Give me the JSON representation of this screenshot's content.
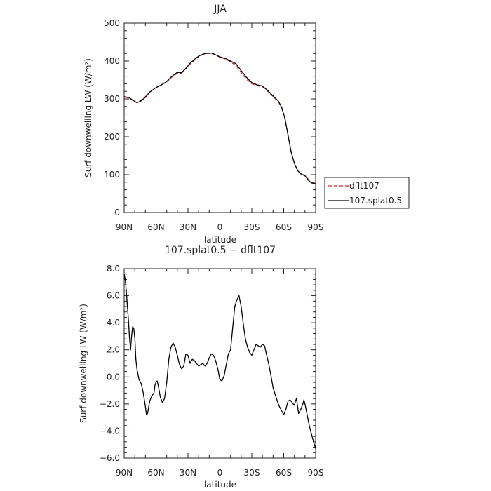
{
  "chart_data": [
    {
      "type": "line",
      "title": "JJA",
      "xlabel": "latitude",
      "ylabel": "Surf downwelling LW (W/m²)",
      "xlim": [
        90,
        -90
      ],
      "ylim": [
        0,
        500
      ],
      "x_ticks": [
        90,
        60,
        30,
        0,
        -30,
        -60,
        -90
      ],
      "x_tick_labels": [
        "90N",
        "60N",
        "30N",
        "0",
        "30S",
        "60S",
        "90S"
      ],
      "y_ticks": [
        0,
        100,
        200,
        300,
        400,
        500
      ],
      "y_tick_labels": [
        "0",
        "100",
        "200",
        "300",
        "400",
        "500"
      ],
      "legend": {
        "placement": "right-bottom-outside"
      },
      "series": [
        {
          "name": "dflt107",
          "color": "#d62728",
          "dash": "dashed",
          "x": [
            90,
            85,
            82,
            78,
            75,
            70,
            66,
            60,
            55,
            50,
            45,
            40,
            36,
            32,
            28,
            24,
            20,
            15,
            12,
            8,
            5,
            0,
            -5,
            -10,
            -15,
            -20,
            -25,
            -30,
            -35,
            -40,
            -45,
            -50,
            -55,
            -58,
            -61,
            -64,
            -67,
            -70,
            -73,
            -76,
            -80,
            -83,
            -86,
            -90
          ],
          "y": [
            305,
            302,
            295,
            290,
            295,
            306,
            318,
            330,
            337,
            345,
            358,
            368,
            368,
            380,
            392,
            402,
            412,
            418,
            420,
            420,
            417,
            410,
            406,
            398,
            388,
            370,
            352,
            340,
            335,
            332,
            320,
            306,
            293,
            278,
            250,
            205,
            160,
            130,
            112,
            103,
            98,
            88,
            80,
            78
          ]
        },
        {
          "name": "107.splat0.5",
          "color": "#000000",
          "dash": "solid",
          "x": [
            90,
            85,
            82,
            78,
            75,
            70,
            66,
            60,
            55,
            50,
            45,
            40,
            36,
            32,
            28,
            24,
            20,
            15,
            12,
            8,
            5,
            0,
            -5,
            -10,
            -15,
            -20,
            -25,
            -30,
            -35,
            -40,
            -45,
            -50,
            -55,
            -58,
            -61,
            -64,
            -67,
            -70,
            -73,
            -76,
            -80,
            -83,
            -86,
            -90
          ],
          "y": [
            306,
            303,
            297,
            290,
            293,
            304,
            318,
            330,
            337,
            346,
            360,
            370,
            369,
            381,
            394,
            404,
            413,
            419,
            421,
            421,
            418,
            411,
            407,
            400,
            393,
            375,
            357,
            343,
            337,
            334,
            322,
            308,
            294,
            278,
            250,
            205,
            160,
            130,
            111,
            102,
            97,
            86,
            78,
            76
          ]
        }
      ]
    },
    {
      "type": "line",
      "title": "107.splat0.5 − dflt107",
      "xlabel": "latitude",
      "ylabel": "Surf downwelling LW (W/m²)",
      "xlim": [
        90,
        -90
      ],
      "ylim": [
        -6.0,
        8.0
      ],
      "x_ticks": [
        90,
        60,
        30,
        0,
        -30,
        -60,
        -90
      ],
      "x_tick_labels": [
        "90N",
        "60N",
        "30N",
        "0",
        "30S",
        "60S",
        "90S"
      ],
      "y_ticks": [
        -6,
        -4,
        -2,
        0,
        2,
        4,
        6,
        8
      ],
      "y_tick_labels": [
        "−6.0",
        "−4.0",
        "−2.0",
        "0.0",
        "2.0",
        "4.0",
        "6.0",
        "8.0"
      ],
      "series": [
        {
          "color": "#000000",
          "dash": "solid",
          "x": [
            90,
            89,
            88,
            86,
            85,
            84,
            83,
            82,
            81,
            80,
            79,
            78,
            76,
            74,
            72,
            70,
            69,
            68,
            66,
            64,
            62,
            61,
            60,
            59,
            58,
            56,
            54,
            52,
            50,
            48,
            46,
            44,
            42,
            40,
            38,
            36,
            34,
            33,
            32,
            30,
            28,
            26,
            24,
            22,
            20,
            18,
            16,
            14,
            12,
            10,
            8,
            6,
            4,
            2,
            0,
            -2,
            -4,
            -6,
            -8,
            -10,
            -12,
            -14,
            -16,
            -18,
            -20,
            -22,
            -24,
            -25,
            -26,
            -28,
            -30,
            -32,
            -34,
            -36,
            -38,
            -40,
            -42,
            -44,
            -46,
            -48,
            -50,
            -52,
            -54,
            -56,
            -58,
            -60,
            -62,
            -64,
            -66,
            -68,
            -69,
            -70,
            -71,
            -72,
            -74,
            -76,
            -78,
            -79,
            -80,
            -82,
            -84,
            -86,
            -88,
            -90
          ],
          "y": [
            7.6,
            7.2,
            6.4,
            4.2,
            2.9,
            2.0,
            3.0,
            3.7,
            3.6,
            2.9,
            1.3,
            0.6,
            -0.2,
            -0.5,
            -1.2,
            -2.2,
            -2.8,
            -2.7,
            -1.8,
            -1.4,
            -1.2,
            -0.6,
            -0.4,
            -0.3,
            -0.6,
            -1.5,
            -1.9,
            -1.6,
            -0.4,
            1.3,
            2.2,
            2.5,
            2.2,
            1.6,
            0.9,
            0.6,
            0.8,
            1.2,
            1.7,
            1.6,
            1.0,
            1.3,
            1.2,
            1.0,
            0.8,
            0.9,
            1.0,
            0.8,
            1.0,
            1.4,
            1.7,
            1.6,
            1.2,
            0.6,
            -0.2,
            -0.3,
            0.1,
            0.9,
            1.7,
            2.0,
            3.6,
            5.2,
            5.7,
            6.0,
            5.2,
            3.9,
            2.8,
            2.5,
            2.2,
            1.8,
            1.6,
            2.0,
            2.4,
            2.3,
            2.2,
            2.4,
            2.3,
            1.6,
            0.9,
            0.1,
            -0.8,
            -1.3,
            -1.8,
            -2.2,
            -2.5,
            -2.8,
            -2.4,
            -1.8,
            -1.7,
            -1.9,
            -2.0,
            -2.1,
            -1.8,
            -1.6,
            -2.7,
            -2.4,
            -2.0,
            -1.7,
            -2.0,
            -2.8,
            -3.6,
            -4.2,
            -4.8,
            -5.3
          ]
        }
      ]
    }
  ]
}
